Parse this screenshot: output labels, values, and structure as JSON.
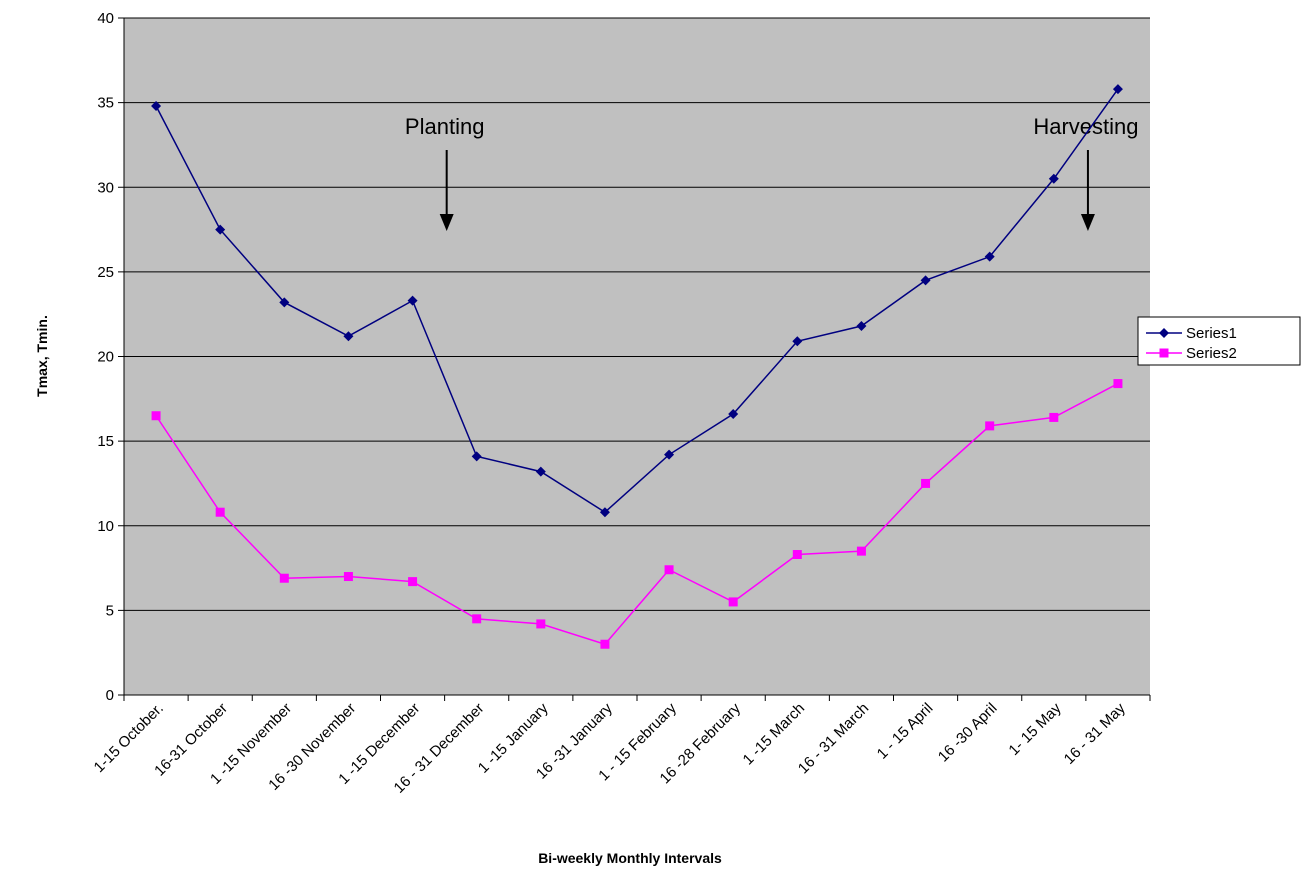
{
  "chart_data": {
    "type": "line",
    "title": "",
    "xlabel": "Bi-weekly Monthly Intervals",
    "ylabel": "Tmax, Tmin.",
    "ylim": [
      0,
      40
    ],
    "yticks": [
      "0",
      "5",
      "10",
      "15",
      "20",
      "25",
      "30",
      "35",
      "40"
    ],
    "grid": true,
    "legend_position": "right",
    "categories": [
      "1-15 October.",
      "16-31 October",
      "1 -15 November",
      "16 -30 November",
      "1 -15 December",
      "16 - 31 December",
      "1 -15 January",
      "16 -31 January",
      "1 - 15 February",
      "16 -28 February",
      "1 -15 March",
      "16 - 31 March",
      "1 - 15 April",
      "16 -30 April",
      "1- 15 May",
      "16 - 31 May"
    ],
    "series": [
      {
        "name": "Series1",
        "color": "#000080",
        "marker": "diamond",
        "values": [
          34.8,
          27.5,
          23.2,
          21.2,
          23.3,
          14.1,
          13.2,
          10.8,
          14.2,
          16.6,
          20.9,
          21.8,
          24.5,
          25.9,
          30.5,
          35.8
        ]
      },
      {
        "name": "Series2",
        "color": "#ff00ff",
        "marker": "square",
        "values": [
          16.5,
          10.8,
          6.9,
          7.0,
          6.7,
          4.5,
          4.2,
          3.0,
          7.4,
          5.5,
          8.3,
          8.5,
          12.5,
          15.9,
          16.4,
          18.4
        ]
      }
    ],
    "annotations": [
      {
        "text": "Planting",
        "category_index": 5
      },
      {
        "text": "Harvesting",
        "category_index": 15
      }
    ],
    "colors": {
      "plot_background": "#c0c0c0",
      "gridline": "#000000"
    }
  }
}
